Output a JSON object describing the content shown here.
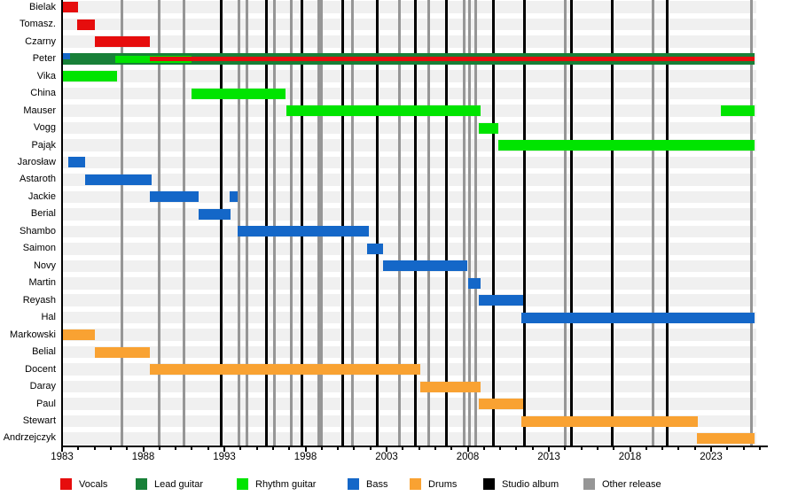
{
  "chart_data": {
    "type": "gantt",
    "title": "",
    "x_axis": {
      "start_year": 1983,
      "end_year": 2026,
      "tick_interval": 1,
      "label_years": [
        1983,
        1988,
        1993,
        1998,
        2003,
        2008,
        2013,
        2018,
        2023
      ]
    },
    "colors": {
      "vocals": "#e60d0d",
      "lead": "#188038",
      "rhythm": "#00e400",
      "bass": "#1467c8",
      "drums": "#f9a232",
      "studio": "#000000",
      "other": "#969696",
      "row_stripe": "#f0f0f0"
    },
    "legend": [
      {
        "label": "Vocals",
        "role": "vocals"
      },
      {
        "label": "Lead guitar",
        "role": "lead"
      },
      {
        "label": "Rhythm guitar",
        "role": "rhythm"
      },
      {
        "label": "Bass",
        "role": "bass"
      },
      {
        "label": "Drums",
        "role": "drums"
      },
      {
        "label": "Studio album",
        "role": "studio"
      },
      {
        "label": "Other release",
        "role": "other"
      }
    ],
    "rows": [
      {
        "label": "Bielak",
        "bars": [
          {
            "role": "vocals",
            "start": 1983.0,
            "end": 1984.0
          }
        ]
      },
      {
        "label": "Tomasz.",
        "bars": [
          {
            "role": "vocals",
            "start": 1983.9,
            "end": 1985.0
          }
        ]
      },
      {
        "label": "Czarny",
        "bars": [
          {
            "role": "vocals",
            "start": 1985.0,
            "end": 1988.4
          }
        ]
      },
      {
        "label": "Peter",
        "bars": [
          {
            "role": "lead",
            "start": 1983.0,
            "end": 2025.7,
            "layer": "full"
          },
          {
            "role": "bass",
            "start": 1983.0,
            "end": 1983.5,
            "layer": "chip"
          },
          {
            "role": "rhythm",
            "start": 1986.3,
            "end": 1991.0,
            "layer": "inner"
          },
          {
            "role": "vocals",
            "start": 1988.4,
            "end": 2025.7,
            "layer": "stripe"
          }
        ]
      },
      {
        "label": "Vika",
        "bars": [
          {
            "role": "rhythm",
            "start": 1983.0,
            "end": 1986.4
          }
        ]
      },
      {
        "label": "China",
        "bars": [
          {
            "role": "rhythm",
            "start": 1991.0,
            "end": 1996.8
          }
        ]
      },
      {
        "label": "Mauser",
        "bars": [
          {
            "role": "rhythm",
            "start": 1996.8,
            "end": 2008.8
          },
          {
            "role": "rhythm",
            "start": 2023.6,
            "end": 2025.7
          }
        ]
      },
      {
        "label": "Vogg",
        "bars": [
          {
            "role": "rhythm",
            "start": 2008.7,
            "end": 2009.9
          }
        ]
      },
      {
        "label": "Pająk",
        "bars": [
          {
            "role": "rhythm",
            "start": 2009.9,
            "end": 2025.7
          }
        ]
      },
      {
        "label": "Jarosław",
        "bars": [
          {
            "role": "bass",
            "start": 1983.4,
            "end": 1984.4
          }
        ]
      },
      {
        "label": "Astaroth",
        "bars": [
          {
            "role": "bass",
            "start": 1984.4,
            "end": 1988.5
          }
        ]
      },
      {
        "label": "Jackie",
        "bars": [
          {
            "role": "bass",
            "start": 1988.4,
            "end": 1991.4
          },
          {
            "role": "bass",
            "start": 1993.3,
            "end": 1993.8
          }
        ]
      },
      {
        "label": "Berial",
        "bars": [
          {
            "role": "bass",
            "start": 1991.4,
            "end": 1993.4
          }
        ]
      },
      {
        "label": "Shambo",
        "bars": [
          {
            "role": "bass",
            "start": 1993.8,
            "end": 2001.9
          }
        ]
      },
      {
        "label": "Saimon",
        "bars": [
          {
            "role": "bass",
            "start": 2001.8,
            "end": 2002.8
          }
        ]
      },
      {
        "label": "Novy",
        "bars": [
          {
            "role": "bass",
            "start": 2002.8,
            "end": 2008.0
          }
        ]
      },
      {
        "label": "Martin",
        "bars": [
          {
            "role": "bass",
            "start": 2008.0,
            "end": 2008.8
          }
        ]
      },
      {
        "label": "Reyash",
        "bars": [
          {
            "role": "bass",
            "start": 2008.7,
            "end": 2011.4
          }
        ]
      },
      {
        "label": "Hal",
        "bars": [
          {
            "role": "bass",
            "start": 2011.3,
            "end": 2025.7
          }
        ]
      },
      {
        "label": "Markowski",
        "bars": [
          {
            "role": "drums",
            "start": 1983.0,
            "end": 1985.0
          }
        ]
      },
      {
        "label": "Belial",
        "bars": [
          {
            "role": "drums",
            "start": 1985.0,
            "end": 1988.4
          }
        ]
      },
      {
        "label": "Docent",
        "bars": [
          {
            "role": "drums",
            "start": 1988.4,
            "end": 2005.1
          }
        ]
      },
      {
        "label": "Daray",
        "bars": [
          {
            "role": "drums",
            "start": 2005.1,
            "end": 2008.8
          }
        ]
      },
      {
        "label": "Paul",
        "bars": [
          {
            "role": "drums",
            "start": 2008.7,
            "end": 2011.4
          }
        ]
      },
      {
        "label": "Stewart",
        "bars": [
          {
            "role": "drums",
            "start": 2011.3,
            "end": 2022.2
          }
        ]
      },
      {
        "label": "Andrzejczyk",
        "bars": [
          {
            "role": "drums",
            "start": 2022.1,
            "end": 2025.7
          }
        ]
      }
    ],
    "releases": [
      {
        "year": 1986.7,
        "type": "other"
      },
      {
        "year": 1989.0,
        "type": "other"
      },
      {
        "year": 1990.5,
        "type": "other"
      },
      {
        "year": 1992.8,
        "type": "studio"
      },
      {
        "year": 1993.9,
        "type": "other"
      },
      {
        "year": 1994.4,
        "type": "other"
      },
      {
        "year": 1995.6,
        "type": "studio"
      },
      {
        "year": 1996.1,
        "type": "other"
      },
      {
        "year": 1997.1,
        "type": "other"
      },
      {
        "year": 1997.8,
        "type": "studio"
      },
      {
        "year": 1998.8,
        "type": "other"
      },
      {
        "year": 1999.0,
        "type": "other"
      },
      {
        "year": 2000.3,
        "type": "studio"
      },
      {
        "year": 2000.9,
        "type": "other"
      },
      {
        "year": 2002.4,
        "type": "studio"
      },
      {
        "year": 2003.8,
        "type": "other"
      },
      {
        "year": 2004.8,
        "type": "studio"
      },
      {
        "year": 2005.6,
        "type": "other"
      },
      {
        "year": 2006.7,
        "type": "studio"
      },
      {
        "year": 2007.8,
        "type": "other"
      },
      {
        "year": 2008.1,
        "type": "other"
      },
      {
        "year": 2008.5,
        "type": "other"
      },
      {
        "year": 2009.6,
        "type": "studio"
      },
      {
        "year": 2011.5,
        "type": "studio"
      },
      {
        "year": 2014.0,
        "type": "other"
      },
      {
        "year": 2014.4,
        "type": "studio"
      },
      {
        "year": 2016.9,
        "type": "studio"
      },
      {
        "year": 2019.4,
        "type": "other"
      },
      {
        "year": 2020.3,
        "type": "studio"
      },
      {
        "year": 2025.5,
        "type": "other"
      }
    ]
  }
}
